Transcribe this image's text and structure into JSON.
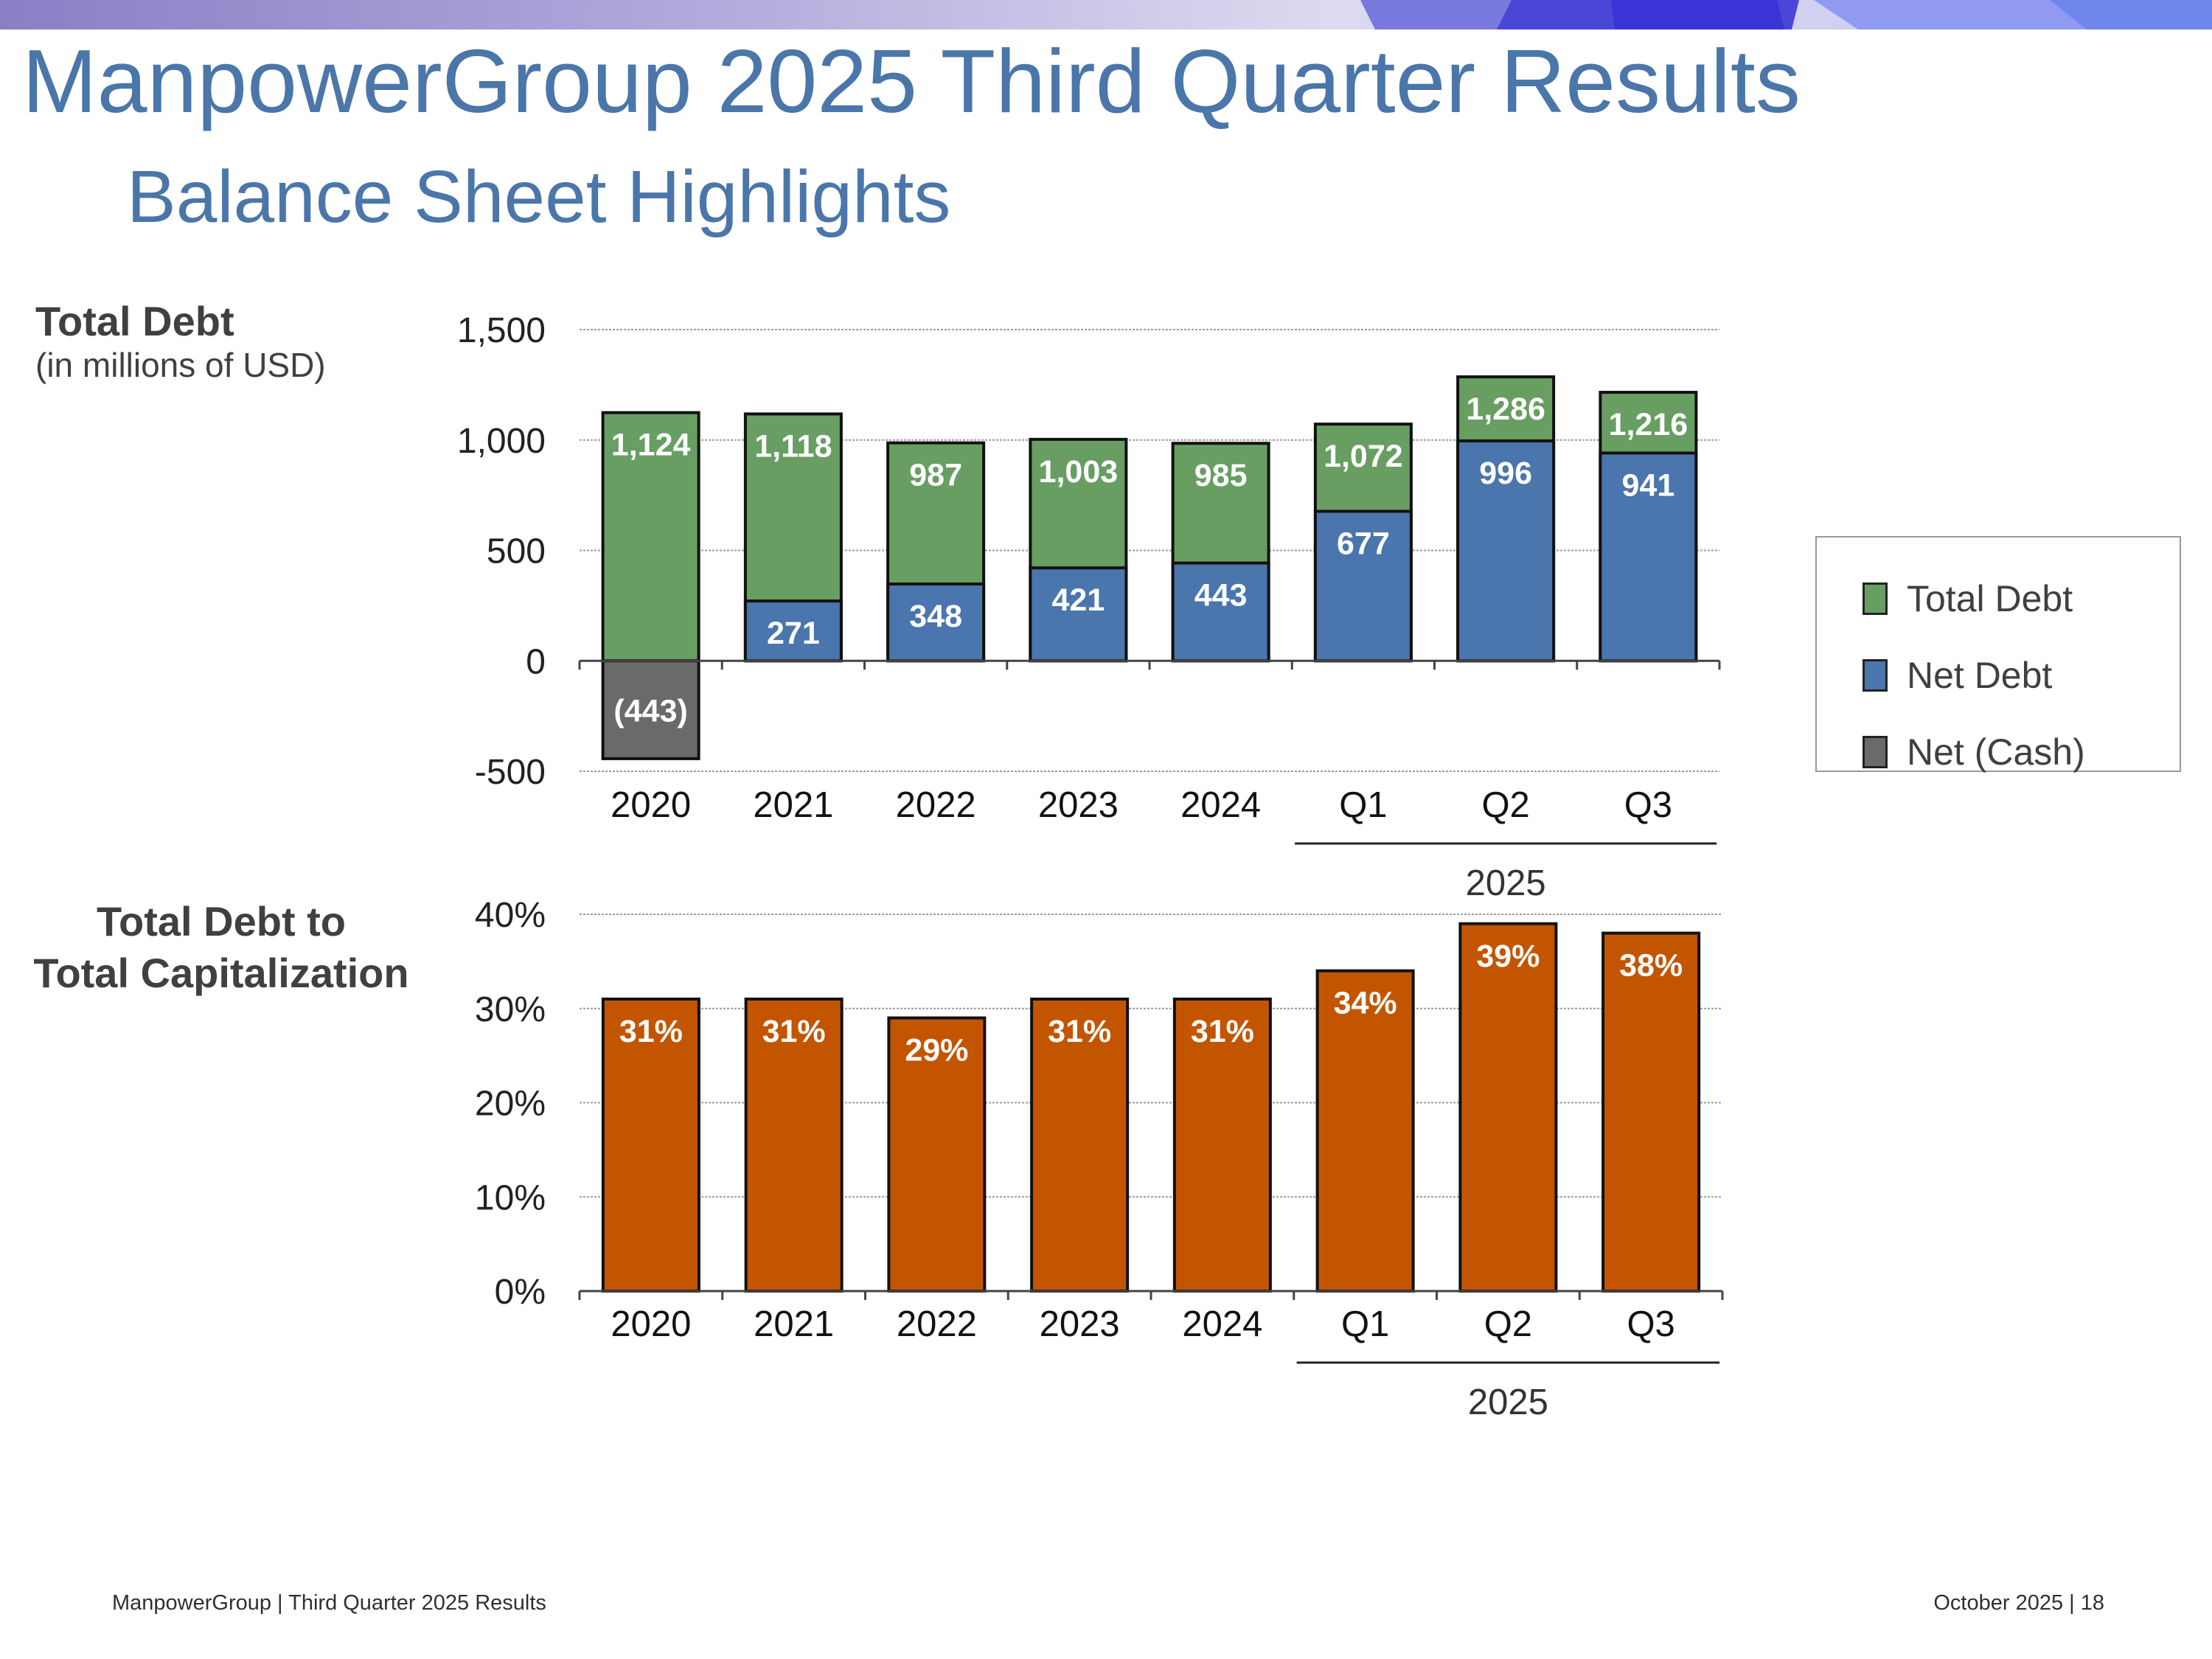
{
  "header": {
    "title": "ManpowerGroup 2025 Third Quarter Results",
    "subtitle": "Balance Sheet Highlights"
  },
  "debt_section": {
    "label": "Total Debt",
    "units": "(in millions of USD)"
  },
  "cap_section": {
    "label_line1": "Total Debt to",
    "label_line2": "Total Capitalization"
  },
  "legend": {
    "items": [
      {
        "label": "Total Debt",
        "color": "#689e62"
      },
      {
        "label": "Net Debt",
        "color": "#4a75ad"
      },
      {
        "label": "Net (Cash)",
        "color": "#6a6a6a"
      }
    ]
  },
  "chart_data": [
    {
      "type": "bar",
      "title": "Total Debt",
      "ylabel": "(in millions of USD)",
      "categories": [
        "2020",
        "2021",
        "2022",
        "2023",
        "2024",
        "Q1",
        "Q2",
        "Q3"
      ],
      "group_label": "2025",
      "group_categories": [
        "Q1",
        "Q2",
        "Q3"
      ],
      "ylim": [
        -500,
        1500
      ],
      "yticks": [
        -500,
        0,
        500,
        1000,
        1500
      ],
      "ytick_labels": [
        "-500",
        "0",
        "500",
        "1,000",
        "1,500"
      ],
      "grid": true,
      "series": [
        {
          "name": "Total Debt",
          "color": "#689e62",
          "values": [
            1124,
            1118,
            987,
            1003,
            985,
            1072,
            1286,
            1216
          ],
          "labels": [
            "1,124",
            "1,118",
            "987",
            "1,003",
            "985",
            "1,072",
            "1,286",
            "1,216"
          ]
        },
        {
          "name": "Net Debt",
          "color": "#4a75ad",
          "values": [
            null,
            271,
            348,
            421,
            443,
            677,
            996,
            941
          ],
          "labels": [
            "",
            "271",
            "348",
            "421",
            "443",
            "677",
            "996",
            "941"
          ]
        },
        {
          "name": "Net (Cash)",
          "color": "#6a6a6a",
          "values": [
            -443,
            null,
            null,
            null,
            null,
            null,
            null,
            null
          ],
          "labels": [
            "(443)",
            "",
            "",
            "",
            "",
            "",
            "",
            ""
          ]
        }
      ]
    },
    {
      "type": "bar",
      "title": "Total Debt to Total Capitalization",
      "categories": [
        "2020",
        "2021",
        "2022",
        "2023",
        "2024",
        "Q1",
        "Q2",
        "Q3"
      ],
      "group_label": "2025",
      "group_categories": [
        "Q1",
        "Q2",
        "Q3"
      ],
      "ylim": [
        0,
        40
      ],
      "yticks": [
        0,
        10,
        20,
        30,
        40
      ],
      "ytick_labels": [
        "0%",
        "10%",
        "20%",
        "30%",
        "40%"
      ],
      "grid": true,
      "series": [
        {
          "name": "Total Debt to Total Capitalization",
          "color": "#c45500",
          "values": [
            31,
            31,
            29,
            31,
            31,
            34,
            39,
            38
          ],
          "labels": [
            "31%",
            "31%",
            "29%",
            "31%",
            "31%",
            "34%",
            "39%",
            "38%"
          ]
        }
      ]
    }
  ],
  "footer": {
    "left": "ManpowerGroup  |  Third Quarter 2025 Results",
    "right": "October 2025   |   18"
  }
}
